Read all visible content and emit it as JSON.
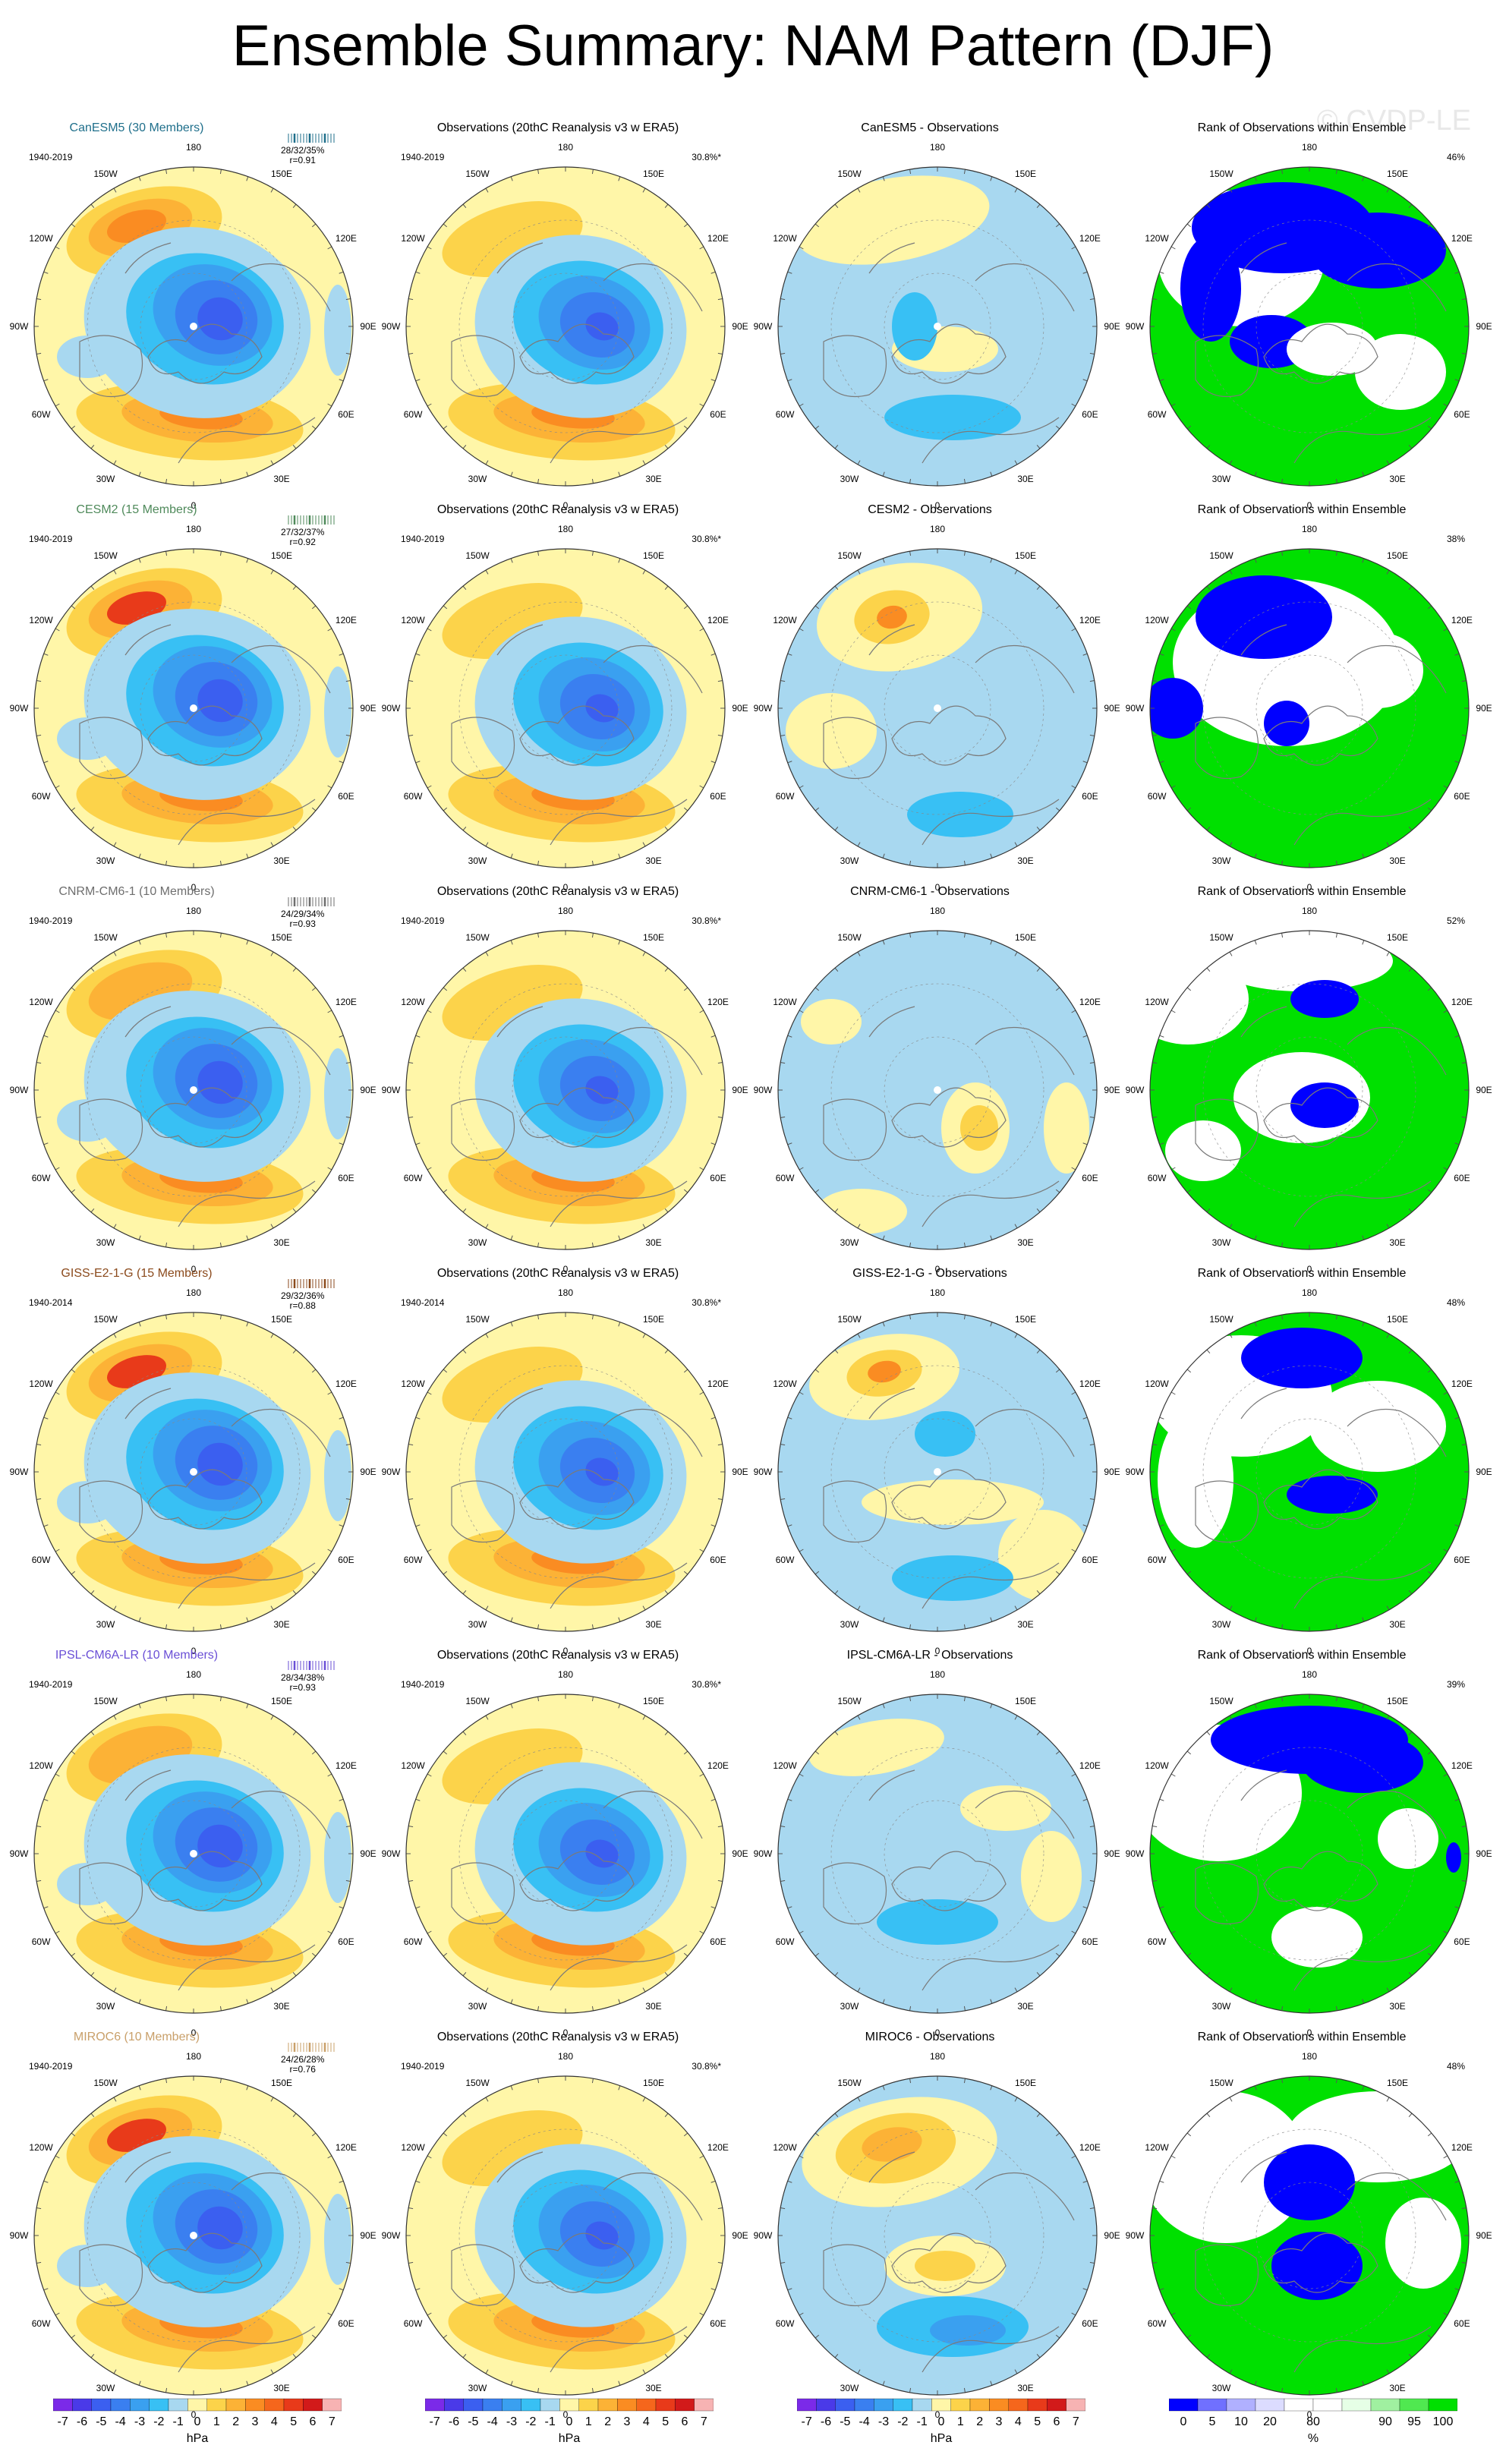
{
  "title": "Ensemble Summary: NAM Pattern (DJF)",
  "watermark": "© CVDP-LE",
  "obs_title": "Observations (20thC Reanalysis v3 w ERA5)",
  "rank_title": "Rank of Observations within Ensemble",
  "obs_stat": "30.8%*",
  "lon_labels": [
    "180",
    "150E",
    "120E",
    "90E",
    "60E",
    "30E",
    "0",
    "30W",
    "60W",
    "90W",
    "120W",
    "150W"
  ],
  "rows": [
    {
      "model": "CanESM5",
      "model_title": "CanESM5 (30 Members)",
      "model_color": "#1f6f8b",
      "period": "1940-2019",
      "obs_period": "1940-2019",
      "stats": "28/32/35%",
      "r": "r=0.91",
      "diff_title": "CanESM5 - Observations",
      "rank_pct": "46%"
    },
    {
      "model": "CESM2",
      "model_title": "CESM2 (15 Members)",
      "model_color": "#4f8a5b",
      "period": "1940-2019",
      "obs_period": "1940-2019",
      "stats": "27/32/37%",
      "r": "r=0.92",
      "diff_title": "CESM2 - Observations",
      "rank_pct": "38%"
    },
    {
      "model": "CNRM-CM6-1",
      "model_title": "CNRM-CM6-1 (10 Members)",
      "model_color": "#6e6e6e",
      "period": "1940-2019",
      "obs_period": "1940-2019",
      "stats": "24/29/34%",
      "r": "r=0.93",
      "diff_title": "CNRM-CM6-1 - Observations",
      "rank_pct": "52%"
    },
    {
      "model": "GISS-E2-1-G",
      "model_title": "GISS-E2-1-G (15 Members)",
      "model_color": "#8b4a1c",
      "period": "1940-2014",
      "obs_period": "1940-2014",
      "stats": "29/32/36%",
      "r": "r=0.88",
      "diff_title": "GISS-E2-1-G - Observations",
      "rank_pct": "48%"
    },
    {
      "model": "IPSL-CM6A-LR",
      "model_title": "IPSL-CM6A-LR (10 Members)",
      "model_color": "#6a4fd6",
      "period": "1940-2019",
      "obs_period": "1940-2019",
      "stats": "28/34/38%",
      "r": "r=0.93",
      "diff_title": "IPSL-CM6A-LR - Observations",
      "rank_pct": "39%"
    },
    {
      "model": "MIROC6",
      "model_title": "MIROC6 (10 Members)",
      "model_color": "#c9a06a",
      "period": "1940-2019",
      "obs_period": "1940-2019",
      "stats": "24/26/28%",
      "r": "r=0.76",
      "diff_title": "MIROC6 - Observations",
      "rank_pct": "48%"
    }
  ],
  "colorbar_hpa": {
    "colors": [
      "#7b2ae8",
      "#4a3ae8",
      "#3b5ff0",
      "#3a7ff0",
      "#3aa0f0",
      "#38c0f4",
      "#a8d8f0",
      "#fff6a8",
      "#fcd34a",
      "#fcb236",
      "#fa8c22",
      "#f5661c",
      "#e83a1a",
      "#d21a1a",
      "#f7b3b3"
    ],
    "ticks": [
      "-7",
      "-6",
      "-5",
      "-4",
      "-3",
      "-2",
      "-1",
      "0",
      "1",
      "2",
      "3",
      "4",
      "5",
      "6",
      "7"
    ],
    "unit": "hPa"
  },
  "colorbar_rank": {
    "colors": [
      "#0000ff",
      "#7070ff",
      "#b0b0ff",
      "#dcdcff",
      "#ffffff",
      "#ffffff",
      "#e6ffe6",
      "#a0f0a0",
      "#50e850",
      "#00e000"
    ],
    "ticks": [
      "0",
      "5",
      "10",
      "20",
      "80",
      "90",
      "95",
      "100"
    ],
    "unit": "%"
  }
}
